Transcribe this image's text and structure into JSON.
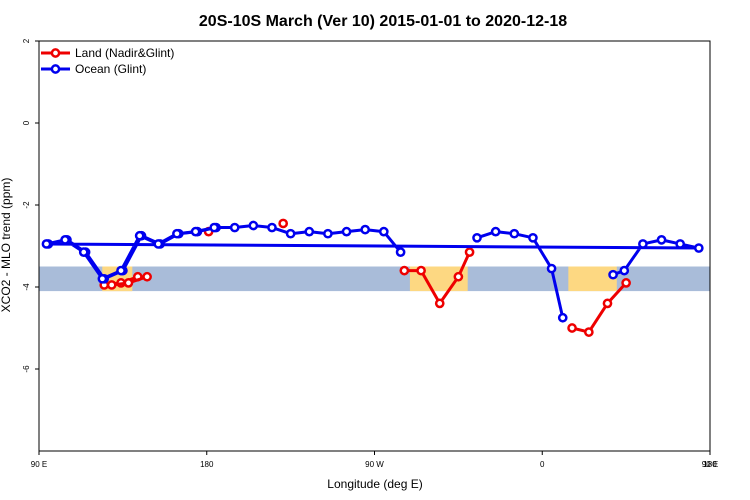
{
  "chart_data": {
    "type": "line",
    "title": "20S-10S March (Ver 10)   2015-01-01 to 2020-12-18",
    "xlabel": "Longitude (deg E)",
    "ylabel": "XCO2 - MLO trend (ppm)",
    "xlim": [
      90,
      450
    ],
    "ylim": [
      -8,
      2
    ],
    "x_ticks": [
      {
        "value": 90,
        "label": "90 E"
      },
      {
        "value": 180,
        "label": "180"
      },
      {
        "value": 270,
        "label": "90 W"
      },
      {
        "value": 360,
        "label": "0"
      },
      {
        "value": 450,
        "label": "90 E"
      },
      {
        "value": 540,
        "label": "180"
      }
    ],
    "y_ticks": [
      {
        "value": 2,
        "label": "2"
      },
      {
        "value": 0,
        "label": "0"
      },
      {
        "value": -2,
        "label": "-2"
      },
      {
        "value": -4,
        "label": "-4"
      },
      {
        "value": -6,
        "label": "-6"
      }
    ],
    "legend_position": "top-left",
    "grid": false,
    "background_band": {
      "y_range": [
        -4.1,
        -3.5
      ],
      "color": "#a9bcd9",
      "land_color": "#fdd882",
      "land_segments_lon": [
        [
          124,
          140
        ],
        [
          289,
          320
        ],
        [
          374,
          400
        ],
        [
          484,
          500
        ]
      ]
    },
    "series": [
      {
        "name": "Land (Nadir&Glint)",
        "color": "#ee0000",
        "segments": [
          {
            "x": [
              125,
              134,
              143
            ],
            "y": [
              -3.95,
              -3.9,
              -3.75
            ]
          },
          {
            "x": [
              181
            ],
            "y": [
              -2.65
            ]
          },
          {
            "x": [
              221
            ],
            "y": [
              -2.45
            ]
          },
          {
            "x": [
              286,
              295,
              305,
              315,
              321
            ],
            "y": [
              -3.6,
              -3.6,
              -4.4,
              -3.75,
              -3.15
            ]
          },
          {
            "x": [
              376,
              385,
              395,
              405
            ],
            "y": [
              -5.0,
              -5.1,
              -4.4,
              -3.9
            ]
          },
          {
            "x": [
              489,
              498,
              508
            ],
            "y": [
              -3.95,
              -3.9,
              -3.75
            ]
          }
        ]
      },
      {
        "name": "Ocean (Glint)",
        "color": "#0000ee",
        "segments": [
          {
            "x": [
              95,
              105,
              115,
              125,
              135,
              145,
              155,
              165,
              175,
              185,
              195,
              205,
              215,
              225,
              235,
              245,
              255,
              265,
              275,
              284
            ],
            "y": [
              -2.95,
              -2.85,
              -3.15,
              -3.8,
              -3.6,
              -2.75,
              -2.95,
              -2.7,
              -2.65,
              -2.55,
              -2.55,
              -2.5,
              -2.55,
              -2.7,
              -2.65,
              -2.7,
              -2.65,
              -2.6,
              -2.65,
              -3.15
            ]
          },
          {
            "x": [
              325,
              335,
              345,
              355,
              365,
              371
            ],
            "y": [
              -2.8,
              -2.65,
              -2.7,
              -2.8,
              -3.55,
              -4.75
            ]
          },
          {
            "x": [
              398,
              404,
              414,
              424,
              434,
              444,
              454,
              464,
              474,
              484,
              494,
              504,
              514,
              524,
              534,
              544
            ],
            "y": [
              -3.7,
              -3.6,
              -2.95,
              -2.85,
              -2.95,
              -3.05,
              -2.95,
              -2.85,
              -3.15,
              -3.8,
              -3.6,
              -2.75,
              -2.95,
              -2.7,
              -2.65,
              -2.55
            ]
          }
        ]
      }
    ]
  }
}
